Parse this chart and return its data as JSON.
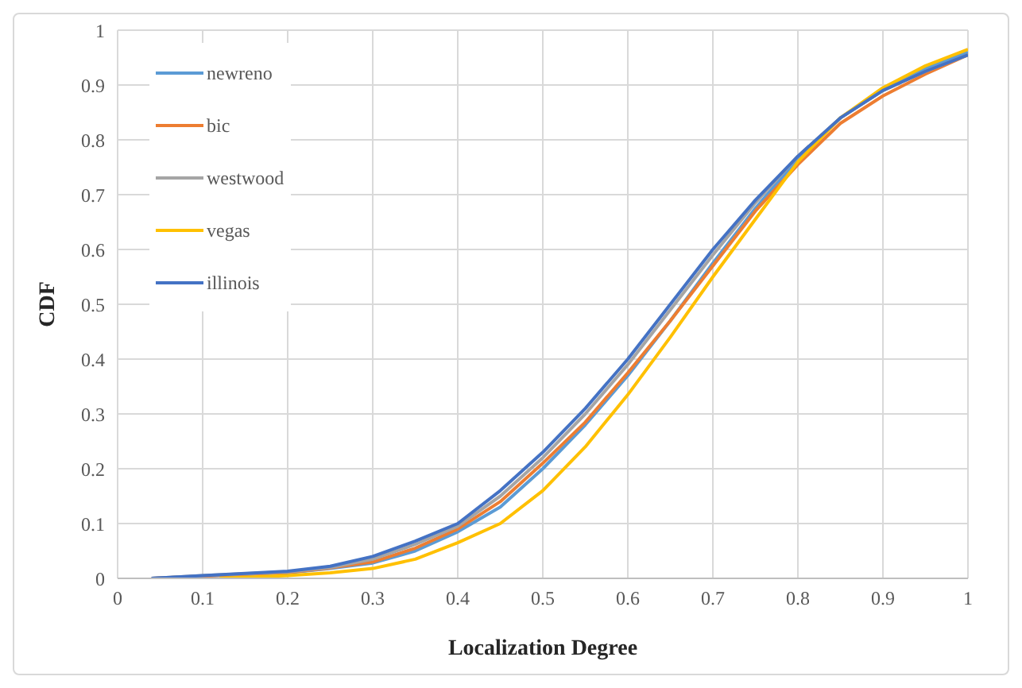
{
  "chart_data": {
    "type": "line",
    "xlabel": "Localization Degree",
    "ylabel": "CDF",
    "xlim": [
      0,
      1
    ],
    "xticks": [
      0,
      0.1,
      0.2,
      0.3,
      0.4,
      0.5,
      0.6,
      0.7,
      0.8,
      0.9,
      1
    ],
    "ylim": [
      0,
      1
    ],
    "yticks": [
      0,
      0.1,
      0.2,
      0.3,
      0.4,
      0.5,
      0.6,
      0.7,
      0.8,
      0.9,
      1
    ],
    "grid": true,
    "legend": "top left",
    "marker": "none",
    "line_style": "solid",
    "series": [
      {
        "name": "newreno",
        "color": "#5b9bd5",
        "x": [
          0.04,
          0.1,
          0.2,
          0.25,
          0.3,
          0.35,
          0.4,
          0.45,
          0.5,
          0.55,
          0.6,
          0.65,
          0.7,
          0.75,
          0.8,
          0.85,
          0.9,
          0.95,
          1
        ],
        "values": [
          0,
          0.004,
          0.01,
          0.018,
          0.028,
          0.05,
          0.085,
          0.13,
          0.2,
          0.28,
          0.37,
          0.47,
          0.575,
          0.675,
          0.765,
          0.84,
          0.89,
          0.93,
          0.96
        ]
      },
      {
        "name": "bic",
        "color": "#ed7d31",
        "x": [
          0.04,
          0.1,
          0.2,
          0.25,
          0.3,
          0.35,
          0.4,
          0.45,
          0.5,
          0.55,
          0.6,
          0.65,
          0.7,
          0.75,
          0.8,
          0.85,
          0.9,
          0.95,
          1
        ],
        "values": [
          0,
          0.004,
          0.011,
          0.019,
          0.03,
          0.055,
          0.09,
          0.14,
          0.21,
          0.285,
          0.375,
          0.47,
          0.57,
          0.67,
          0.755,
          0.83,
          0.88,
          0.92,
          0.955
        ]
      },
      {
        "name": "westwood",
        "color": "#a5a5a5",
        "x": [
          0.04,
          0.1,
          0.2,
          0.25,
          0.3,
          0.35,
          0.4,
          0.45,
          0.5,
          0.55,
          0.6,
          0.65,
          0.7,
          0.75,
          0.8,
          0.85,
          0.9,
          0.95,
          1
        ],
        "values": [
          0,
          0.005,
          0.012,
          0.02,
          0.035,
          0.062,
          0.095,
          0.15,
          0.22,
          0.3,
          0.39,
          0.49,
          0.59,
          0.685,
          0.77,
          0.84,
          0.89,
          0.925,
          0.955
        ]
      },
      {
        "name": "vegas",
        "color": "#ffc000",
        "x": [
          0.12,
          0.2,
          0.25,
          0.3,
          0.35,
          0.4,
          0.45,
          0.5,
          0.55,
          0.6,
          0.65,
          0.7,
          0.75,
          0.8,
          0.85,
          0.9,
          0.95,
          1
        ],
        "values": [
          0,
          0.005,
          0.01,
          0.018,
          0.035,
          0.065,
          0.1,
          0.16,
          0.24,
          0.335,
          0.44,
          0.55,
          0.655,
          0.76,
          0.84,
          0.895,
          0.935,
          0.965
        ]
      },
      {
        "name": "illinois",
        "color": "#4472c4",
        "x": [
          0.04,
          0.1,
          0.2,
          0.25,
          0.3,
          0.35,
          0.4,
          0.45,
          0.5,
          0.55,
          0.6,
          0.65,
          0.7,
          0.75,
          0.8,
          0.85,
          0.9,
          0.95,
          1
        ],
        "values": [
          0,
          0.005,
          0.013,
          0.022,
          0.04,
          0.068,
          0.1,
          0.16,
          0.23,
          0.31,
          0.4,
          0.5,
          0.6,
          0.69,
          0.77,
          0.84,
          0.89,
          0.925,
          0.955
        ]
      }
    ]
  }
}
